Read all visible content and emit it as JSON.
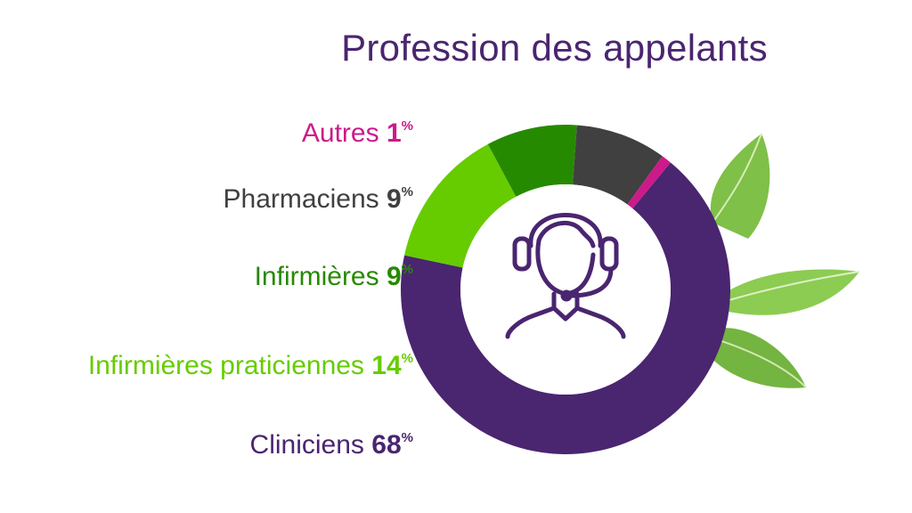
{
  "title": "Profession des appelants",
  "colors": {
    "Cliniciens": "#4a2570",
    "Infirmières praticiennes": "#66cc00",
    "Infirmières": "#268a00",
    "Pharmaciens": "#404040",
    "Autres": "#cc1a8a"
  },
  "center_icon": "headset-agent-icon",
  "decoration": "green-leaves",
  "chart_data": {
    "type": "pie",
    "variant": "donut",
    "title": "Profession des appelants",
    "unit": "%",
    "slices": [
      {
        "label": "Cliniciens",
        "value": 68,
        "display": "68"
      },
      {
        "label": "Infirmières praticiennes",
        "value": 14,
        "display": "14"
      },
      {
        "label": "Infirmières",
        "value": 9,
        "display": "9"
      },
      {
        "label": "Pharmaciens",
        "value": 9,
        "display": "9"
      },
      {
        "label": "Autres",
        "value": 1,
        "display": "1"
      }
    ]
  }
}
